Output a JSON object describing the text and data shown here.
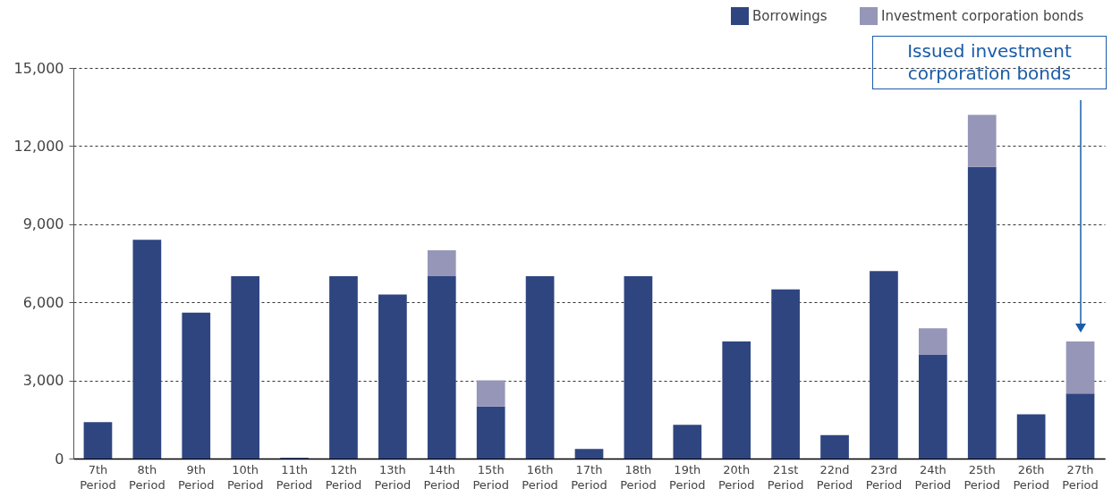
{
  "chart_data": {
    "type": "bar",
    "stacked": true,
    "categories": [
      "7th Period",
      "8th Period",
      "9th Period",
      "10th Period",
      "11th Period",
      "12th Period",
      "13th Period",
      "14th Period",
      "15th Period",
      "16th Period",
      "17th Period",
      "18th Period",
      "19th Period",
      "20th Period",
      "21st Period",
      "22nd Period",
      "23rd Period",
      "24th Period",
      "25th Period",
      "26th Period",
      "27th Period"
    ],
    "series": [
      {
        "name": "Borrowings",
        "color": "#2e4580",
        "values": [
          1400,
          8400,
          5600,
          7000,
          30,
          7000,
          6300,
          7000,
          2000,
          7000,
          370,
          7000,
          1300,
          4500,
          6500,
          900,
          7200,
          4000,
          11200,
          1700,
          2500
        ]
      },
      {
        "name": "Investment corporation bonds",
        "color": "#9696b8",
        "values": [
          0,
          0,
          0,
          0,
          0,
          0,
          0,
          1000,
          1000,
          0,
          0,
          0,
          0,
          0,
          0,
          0,
          0,
          1000,
          2000,
          0,
          2000
        ]
      }
    ],
    "ylim": [
      0,
      15000
    ],
    "yticks": [
      0,
      {
        "value": 3000,
        "label": "3,000"
      },
      {
        "value": 6000,
        "label": "6,000"
      },
      {
        "value": 9000,
        "label": "9,000"
      },
      {
        "value": 12000,
        "label": "12,000"
      },
      {
        "value": 15000,
        "label": "15,000"
      }
    ],
    "grid": "y",
    "legend": "top right",
    "annotations": [
      "Issued investment corporation bonds"
    ]
  }
}
